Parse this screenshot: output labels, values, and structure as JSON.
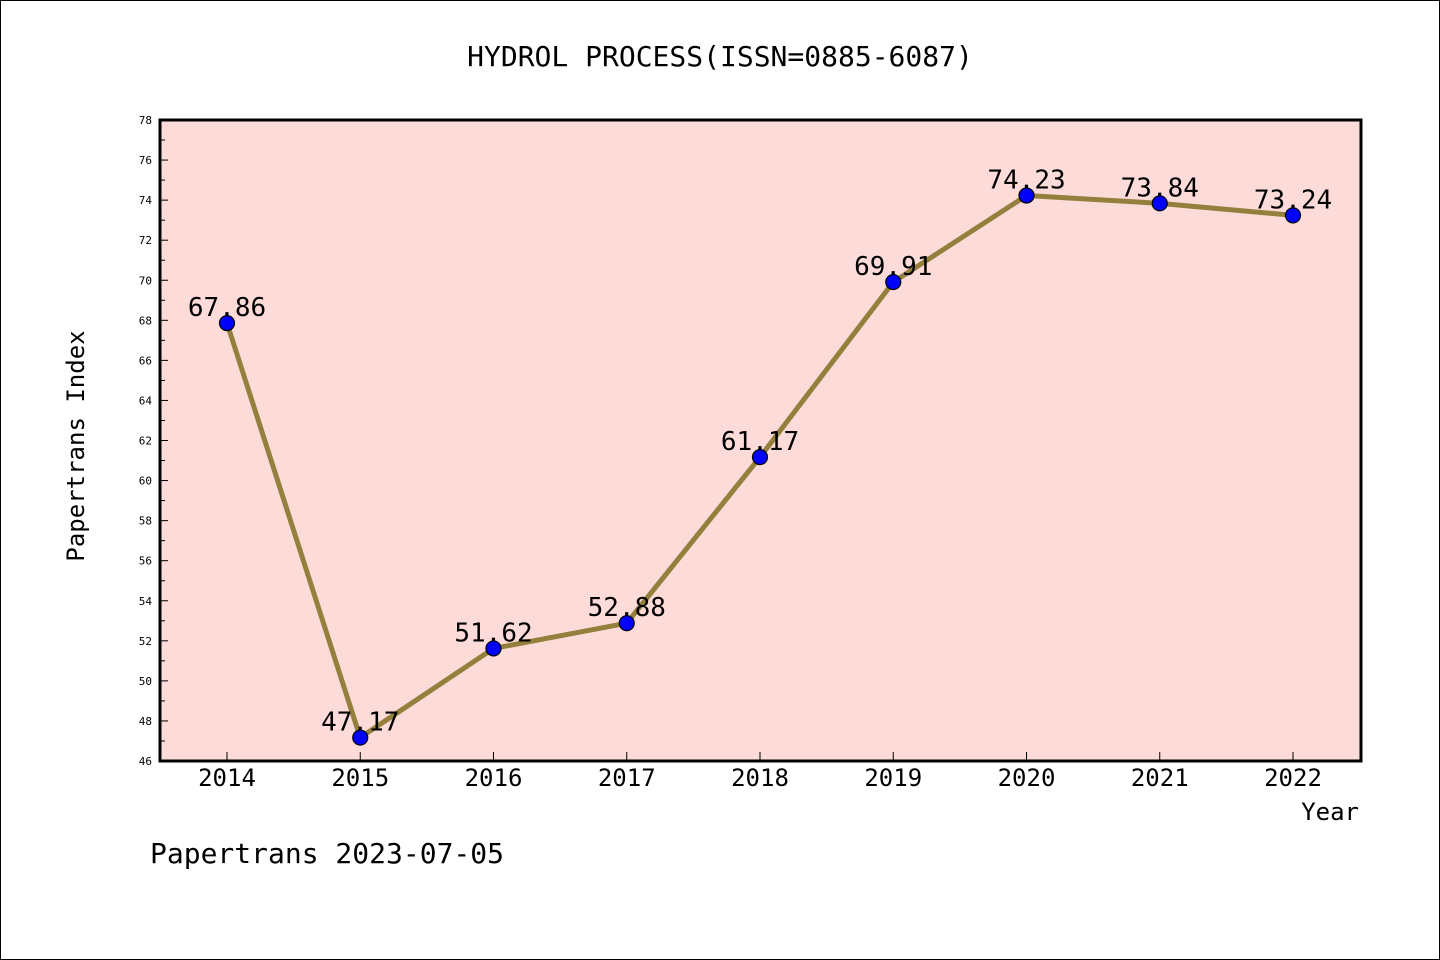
{
  "chart_data": {
    "type": "line",
    "title": "HYDROL PROCESS(ISSN=0885-6087)",
    "xlabel": "Year",
    "ylabel": "Papertrans Index",
    "categories": [
      "2014",
      "2015",
      "2016",
      "2017",
      "2018",
      "2019",
      "2020",
      "2021",
      "2022"
    ],
    "series": [
      {
        "values": [
          67.86,
          47.17,
          51.62,
          52.88,
          61.17,
          69.91,
          74.23,
          73.84,
          73.24
        ],
        "labels": [
          "67.86",
          "47.17",
          "51.62",
          "52.88",
          "61.17",
          "69.91",
          "74.23",
          "73.84",
          "73.24"
        ],
        "color": "#94803c",
        "marker_color": "#0000ff"
      }
    ],
    "ylim": [
      46,
      78
    ],
    "yticks": [
      "46",
      "48",
      "50",
      "52",
      "54",
      "56",
      "58",
      "60",
      "62",
      "64",
      "66",
      "68",
      "70",
      "72",
      "74",
      "76",
      "78"
    ],
    "grid": false,
    "plot_background": "#fddbd9"
  },
  "footer": {
    "text": "Papertrans 2023-07-05"
  }
}
